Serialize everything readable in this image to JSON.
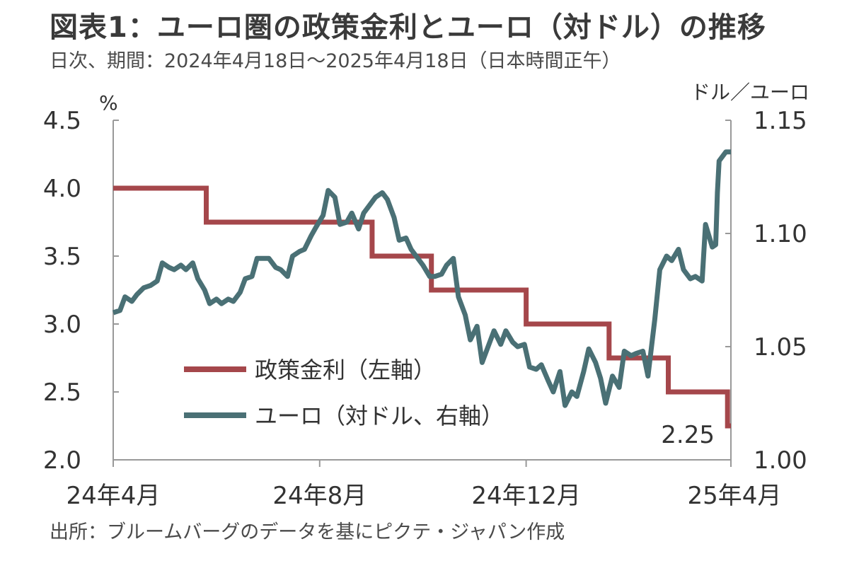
{
  "header": {
    "title": "図表1：ユーロ圏の政策金利とユーロ（対ドル）の推移",
    "subtitle": "日次、期間：2024年4月18日～2025年4月18日（日本時間正午）"
  },
  "footer": {
    "source": "出所：ブルームバーグのデータを基にピクテ・ジャパン作成"
  },
  "chart_data": {
    "type": "line",
    "y_left": {
      "unit": "%",
      "ylim": [
        2.0,
        4.5
      ],
      "ticks": [
        "2.0",
        "2.5",
        "3.0",
        "3.5",
        "4.0",
        "4.5"
      ]
    },
    "y_right": {
      "unit": "ドル／ユーロ",
      "ylim": [
        1.0,
        1.15
      ],
      "ticks": [
        "1.00",
        "1.05",
        "1.10",
        "1.15"
      ]
    },
    "x_axis": {
      "range": [
        "2024-04-18",
        "2025-04-18"
      ],
      "ticks": [
        {
          "date": "2024-04-18",
          "label": "24年4月"
        },
        {
          "date": "2024-08-18",
          "label": "24年8月"
        },
        {
          "date": "2024-12-18",
          "label": "24年12月"
        },
        {
          "date": "2025-04-18",
          "label": "25年4月"
        }
      ]
    },
    "grid": false,
    "legend_position": "bottom-center",
    "series": [
      {
        "name": "政策金利（左軸）",
        "axis": "left",
        "color": "#a5474b",
        "step": true,
        "points": [
          [
            "2024-04-18",
            4.0
          ],
          [
            "2024-06-12",
            4.0
          ],
          [
            "2024-06-12",
            3.75
          ],
          [
            "2024-09-18",
            3.75
          ],
          [
            "2024-09-18",
            3.5
          ],
          [
            "2024-10-23",
            3.5
          ],
          [
            "2024-10-23",
            3.25
          ],
          [
            "2024-12-18",
            3.25
          ],
          [
            "2024-12-18",
            3.0
          ],
          [
            "2025-02-05",
            3.0
          ],
          [
            "2025-02-05",
            2.75
          ],
          [
            "2025-03-12",
            2.75
          ],
          [
            "2025-03-12",
            2.5
          ],
          [
            "2025-04-16",
            2.5
          ],
          [
            "2025-04-16",
            2.25
          ],
          [
            "2025-04-18",
            2.25
          ]
        ]
      },
      {
        "name": "ユーロ（対ドル、右軸）",
        "axis": "right",
        "color": "#4a7075",
        "points": [
          [
            "2024-04-18",
            1.065
          ],
          [
            "2024-04-22",
            1.066
          ],
          [
            "2024-04-25",
            1.072
          ],
          [
            "2024-04-29",
            1.07
          ],
          [
            "2024-05-02",
            1.073
          ],
          [
            "2024-05-06",
            1.076
          ],
          [
            "2024-05-10",
            1.077
          ],
          [
            "2024-05-14",
            1.079
          ],
          [
            "2024-05-17",
            1.087
          ],
          [
            "2024-05-21",
            1.085
          ],
          [
            "2024-05-24",
            1.084
          ],
          [
            "2024-05-28",
            1.086
          ],
          [
            "2024-05-31",
            1.084
          ],
          [
            "2024-06-04",
            1.087
          ],
          [
            "2024-06-07",
            1.08
          ],
          [
            "2024-06-11",
            1.075
          ],
          [
            "2024-06-14",
            1.069
          ],
          [
            "2024-06-18",
            1.071
          ],
          [
            "2024-06-21",
            1.069
          ],
          [
            "2024-06-25",
            1.071
          ],
          [
            "2024-06-28",
            1.07
          ],
          [
            "2024-07-02",
            1.074
          ],
          [
            "2024-07-05",
            1.08
          ],
          [
            "2024-07-09",
            1.081
          ],
          [
            "2024-07-12",
            1.089
          ],
          [
            "2024-07-16",
            1.089
          ],
          [
            "2024-07-19",
            1.089
          ],
          [
            "2024-07-23",
            1.085
          ],
          [
            "2024-07-26",
            1.084
          ],
          [
            "2024-07-30",
            1.081
          ],
          [
            "2024-08-02",
            1.09
          ],
          [
            "2024-08-06",
            1.092
          ],
          [
            "2024-08-09",
            1.093
          ],
          [
            "2024-08-13",
            1.099
          ],
          [
            "2024-08-16",
            1.103
          ],
          [
            "2024-08-20",
            1.108
          ],
          [
            "2024-08-23",
            1.119
          ],
          [
            "2024-08-27",
            1.116
          ],
          [
            "2024-08-30",
            1.104
          ],
          [
            "2024-09-03",
            1.105
          ],
          [
            "2024-09-06",
            1.109
          ],
          [
            "2024-09-10",
            1.102
          ],
          [
            "2024-09-13",
            1.109
          ],
          [
            "2024-09-17",
            1.113
          ],
          [
            "2024-09-20",
            1.116
          ],
          [
            "2024-09-24",
            1.118
          ],
          [
            "2024-09-27",
            1.115
          ],
          [
            "2024-10-01",
            1.107
          ],
          [
            "2024-10-04",
            1.097
          ],
          [
            "2024-10-08",
            1.098
          ],
          [
            "2024-10-11",
            1.093
          ],
          [
            "2024-10-15",
            1.089
          ],
          [
            "2024-10-18",
            1.086
          ],
          [
            "2024-10-22",
            1.081
          ],
          [
            "2024-10-25",
            1.081
          ],
          [
            "2024-10-29",
            1.082
          ],
          [
            "2024-11-01",
            1.086
          ],
          [
            "2024-11-05",
            1.089
          ],
          [
            "2024-11-08",
            1.072
          ],
          [
            "2024-11-12",
            1.064
          ],
          [
            "2024-11-15",
            1.053
          ],
          [
            "2024-11-19",
            1.059
          ],
          [
            "2024-11-22",
            1.043
          ],
          [
            "2024-11-26",
            1.051
          ],
          [
            "2024-11-29",
            1.057
          ],
          [
            "2024-12-03",
            1.051
          ],
          [
            "2024-12-06",
            1.057
          ],
          [
            "2024-12-10",
            1.052
          ],
          [
            "2024-12-13",
            1.05
          ],
          [
            "2024-12-17",
            1.051
          ],
          [
            "2024-12-20",
            1.041
          ],
          [
            "2024-12-24",
            1.04
          ],
          [
            "2024-12-27",
            1.042
          ],
          [
            "2024-12-31",
            1.035
          ],
          [
            "2025-01-03",
            1.03
          ],
          [
            "2025-01-07",
            1.039
          ],
          [
            "2025-01-10",
            1.024
          ],
          [
            "2025-01-14",
            1.03
          ],
          [
            "2025-01-17",
            1.028
          ],
          [
            "2025-01-21",
            1.039
          ],
          [
            "2025-01-24",
            1.049
          ],
          [
            "2025-01-28",
            1.043
          ],
          [
            "2025-01-31",
            1.036
          ],
          [
            "2025-02-03",
            1.025
          ],
          [
            "2025-02-07",
            1.037
          ],
          [
            "2025-02-11",
            1.032
          ],
          [
            "2025-02-14",
            1.048
          ],
          [
            "2025-02-18",
            1.046
          ],
          [
            "2025-02-21",
            1.047
          ],
          [
            "2025-02-25",
            1.048
          ],
          [
            "2025-02-28",
            1.037
          ],
          [
            "2025-03-04",
            1.062
          ],
          [
            "2025-03-07",
            1.084
          ],
          [
            "2025-03-11",
            1.09
          ],
          [
            "2025-03-14",
            1.088
          ],
          [
            "2025-03-18",
            1.093
          ],
          [
            "2025-03-21",
            1.084
          ],
          [
            "2025-03-25",
            1.08
          ],
          [
            "2025-03-28",
            1.081
          ],
          [
            "2025-04-01",
            1.079
          ],
          [
            "2025-04-03",
            1.104
          ],
          [
            "2025-04-07",
            1.094
          ],
          [
            "2025-04-09",
            1.095
          ],
          [
            "2025-04-10",
            1.118
          ],
          [
            "2025-04-11",
            1.132
          ],
          [
            "2025-04-15",
            1.136
          ],
          [
            "2025-04-18",
            1.136
          ]
        ]
      }
    ],
    "annotations": [
      {
        "text": "2.25"
      }
    ]
  }
}
